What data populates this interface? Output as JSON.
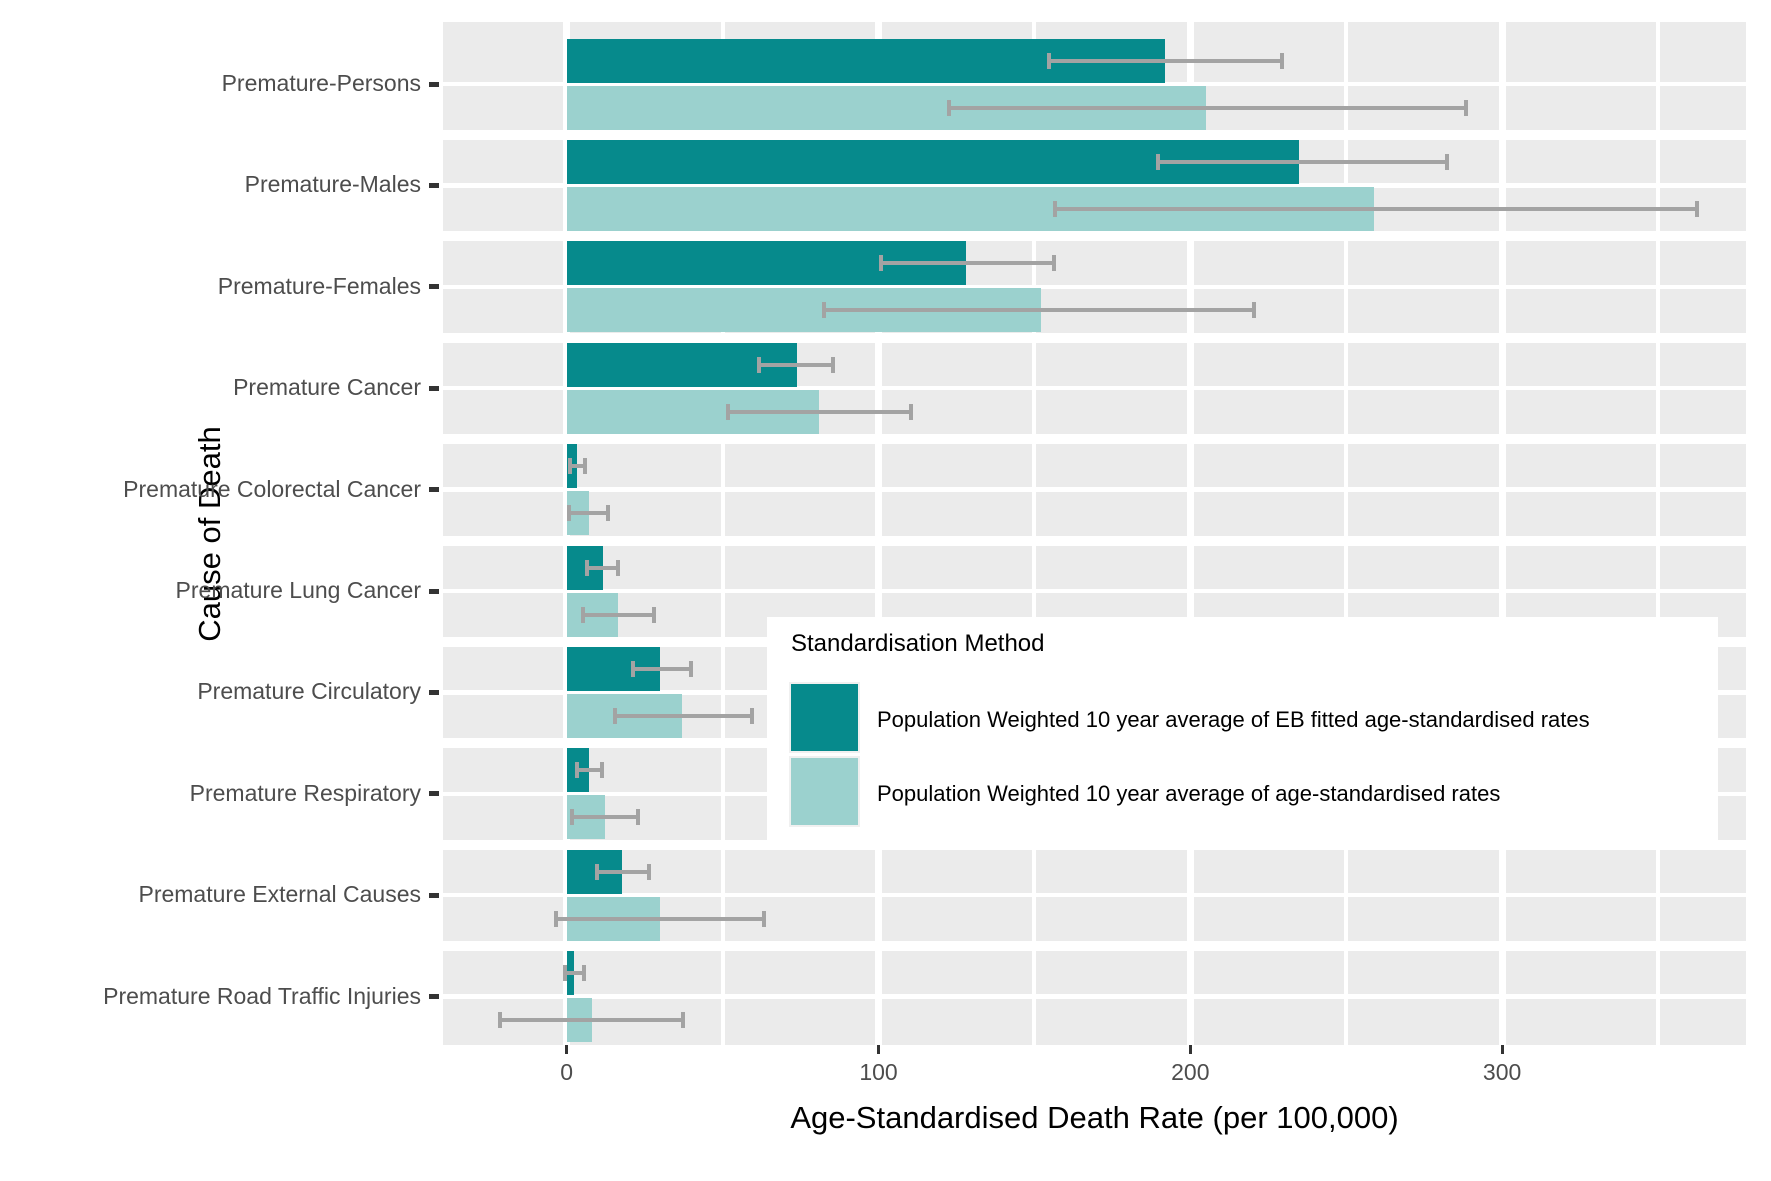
{
  "chart_data": {
    "type": "bar",
    "orientation": "horizontal",
    "xlabel": "Age-Standardised Death Rate (per 100,000)",
    "ylabel": "Cause of Death",
    "xlim": [
      -40,
      378
    ],
    "x_ticks": [
      0,
      100,
      200,
      300
    ],
    "x_tick_labels": [
      "0",
      "100",
      "200",
      "300"
    ],
    "x_minor_ticks": [
      50,
      150,
      250,
      350
    ],
    "grid": "white major/minor gridlines on gray panel",
    "legend_position": "inside panel, center-right",
    "legend_title": "Standardisation Method",
    "categories": [
      "Premature-Persons",
      "Premature-Males",
      "Premature-Females",
      "Premature Cancer",
      "Premature Colorectal Cancer",
      "Premature Lung Cancer",
      "Premature Circulatory",
      "Premature Respiratory",
      "Premature External Causes",
      "Premature Road Traffic Injuries"
    ],
    "series": [
      {
        "name": "Population Weighted 10 year average of EB fitted age-standardised rates",
        "color": "#068a8c",
        "values": [
          192,
          235,
          128,
          74,
          3.2,
          11.5,
          30,
          7.3,
          17.7,
          2.4
        ],
        "ci_low": [
          154,
          189,
          100,
          61,
          0.3,
          6,
          20.5,
          2.7,
          9,
          -1.3
        ],
        "ci_high": [
          230,
          283,
          157,
          86,
          6.4,
          17,
          40.5,
          12,
          27,
          6.3
        ]
      },
      {
        "name": "Population Weighted 10 year average of age-standardised rates",
        "color": "#9bd1ce",
        "values": [
          205,
          259,
          152,
          81,
          7,
          16.5,
          37,
          12.2,
          30,
          8
        ],
        "ci_low": [
          122,
          156,
          82,
          51,
          0,
          4.5,
          15,
          1,
          -4,
          -22
        ],
        "ci_high": [
          289,
          363,
          221,
          111,
          14,
          28.5,
          60,
          23.5,
          64,
          38
        ]
      }
    ],
    "colors": {
      "panel_bg": "#ebebeb",
      "gridline": "#ffffff",
      "error_bar": "#a3a3a3",
      "axis_tick": "#333333",
      "tick_label": "#4d4d4d",
      "axis_title": "#000000"
    }
  }
}
